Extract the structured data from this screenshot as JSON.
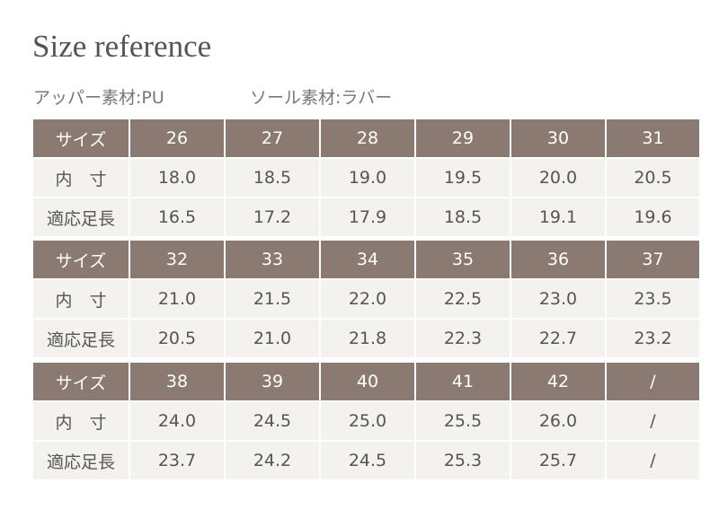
{
  "header": {
    "title": "Size reference",
    "materials": [
      "アッパー素材:PU",
      "ソール素材:ラバー"
    ]
  },
  "table": {
    "blocks": [
      {
        "header": [
          "サイズ",
          "26",
          "27",
          "28",
          "29",
          "30",
          "31"
        ],
        "rows": [
          [
            "内　寸",
            "18.0",
            "18.5",
            "19.0",
            "19.5",
            "20.0",
            "20.5"
          ],
          [
            "適応足長",
            "16.5",
            "17.2",
            "17.9",
            "18.5",
            "19.1",
            "19.6"
          ]
        ]
      },
      {
        "header": [
          "サイズ",
          "32",
          "33",
          "34",
          "35",
          "36",
          "37"
        ],
        "rows": [
          [
            "内　寸",
            "21.0",
            "21.5",
            "22.0",
            "22.5",
            "23.0",
            "23.5"
          ],
          [
            "適応足長",
            "20.5",
            "21.0",
            "21.8",
            "22.3",
            "22.7",
            "23.2"
          ]
        ]
      },
      {
        "header": [
          "サイズ",
          "38",
          "39",
          "40",
          "41",
          "42",
          "/"
        ],
        "rows": [
          [
            "内　寸",
            "24.0",
            "24.5",
            "25.0",
            "25.5",
            "26.0",
            "/"
          ],
          [
            "適応足長",
            "23.7",
            "24.2",
            "24.5",
            "25.3",
            "25.7",
            "/"
          ]
        ]
      }
    ]
  }
}
